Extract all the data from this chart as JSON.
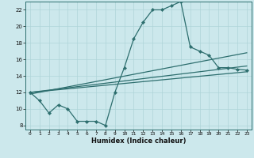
{
  "xlabel": "Humidex (Indice chaleur)",
  "xlim": [
    -0.5,
    23.5
  ],
  "ylim": [
    7.5,
    23
  ],
  "yticks": [
    8,
    10,
    12,
    14,
    16,
    18,
    20,
    22
  ],
  "xticks": [
    0,
    1,
    2,
    3,
    4,
    5,
    6,
    7,
    8,
    9,
    10,
    11,
    12,
    13,
    14,
    15,
    16,
    17,
    18,
    19,
    20,
    21,
    22,
    23
  ],
  "bg_color": "#cce8ec",
  "line_color": "#2d6e6e",
  "grid_color": "#afd4d8",
  "main_x": [
    0,
    1,
    2,
    3,
    4,
    5,
    6,
    7,
    8,
    9,
    10,
    11,
    12,
    13,
    14,
    15,
    16,
    17,
    18,
    19,
    20,
    21,
    22,
    23
  ],
  "main_y": [
    12,
    11,
    9.5,
    10.5,
    10,
    8.5,
    8.5,
    8.5,
    8,
    12,
    15,
    18.5,
    20.5,
    22,
    22,
    22.5,
    23,
    17.5,
    17,
    16.5,
    15,
    15,
    14.8,
    14.7
  ],
  "trend1_x": [
    0,
    23
  ],
  "trend1_y": [
    12,
    14.5
  ],
  "trend2_x": [
    0,
    23
  ],
  "trend2_y": [
    11.8,
    16.8
  ],
  "trend3_x": [
    0,
    23
  ],
  "trend3_y": [
    12.0,
    15.2
  ]
}
